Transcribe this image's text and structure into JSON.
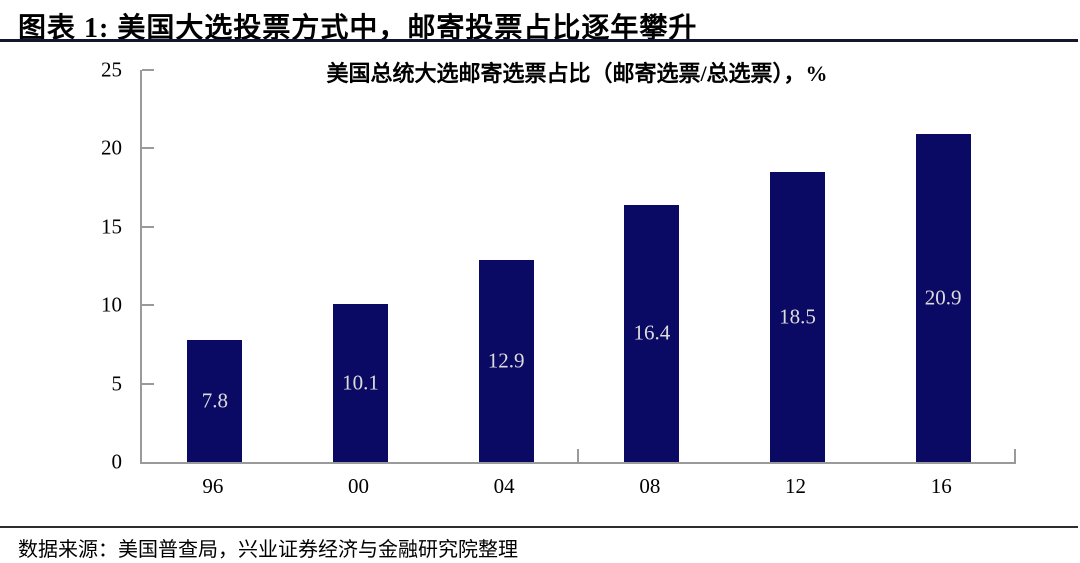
{
  "page": {
    "header_title": "图表 1: 美国大选投票方式中，邮寄投票占比逐年攀升",
    "source_note": "数据来源：美国普查局，兴业证券经济与金融研究院整理"
  },
  "chart_data": {
    "type": "bar",
    "title": "美国总统大选邮寄选票占比（邮寄选票/总选票），%",
    "categories": [
      "96",
      "00",
      "04",
      "08",
      "12",
      "16"
    ],
    "values": [
      7.8,
      10.1,
      12.9,
      16.4,
      18.5,
      20.9
    ],
    "value_labels": [
      "7.8",
      "10.1",
      "12.9",
      "16.4",
      "18.5",
      "20.9"
    ],
    "xlabel": "",
    "ylabel": "",
    "ylim": [
      0,
      25
    ],
    "yticks": [
      0,
      5,
      10,
      15,
      20,
      25
    ],
    "xtick_boundaries": [
      3,
      6
    ],
    "grid": false,
    "legend_position": "none",
    "value_label_position": "inside-center",
    "bar_color": "#0a0a64",
    "value_label_color": "#dcdcdc",
    "axis_color": "#9a9a9a",
    "title_color": "#000000"
  }
}
